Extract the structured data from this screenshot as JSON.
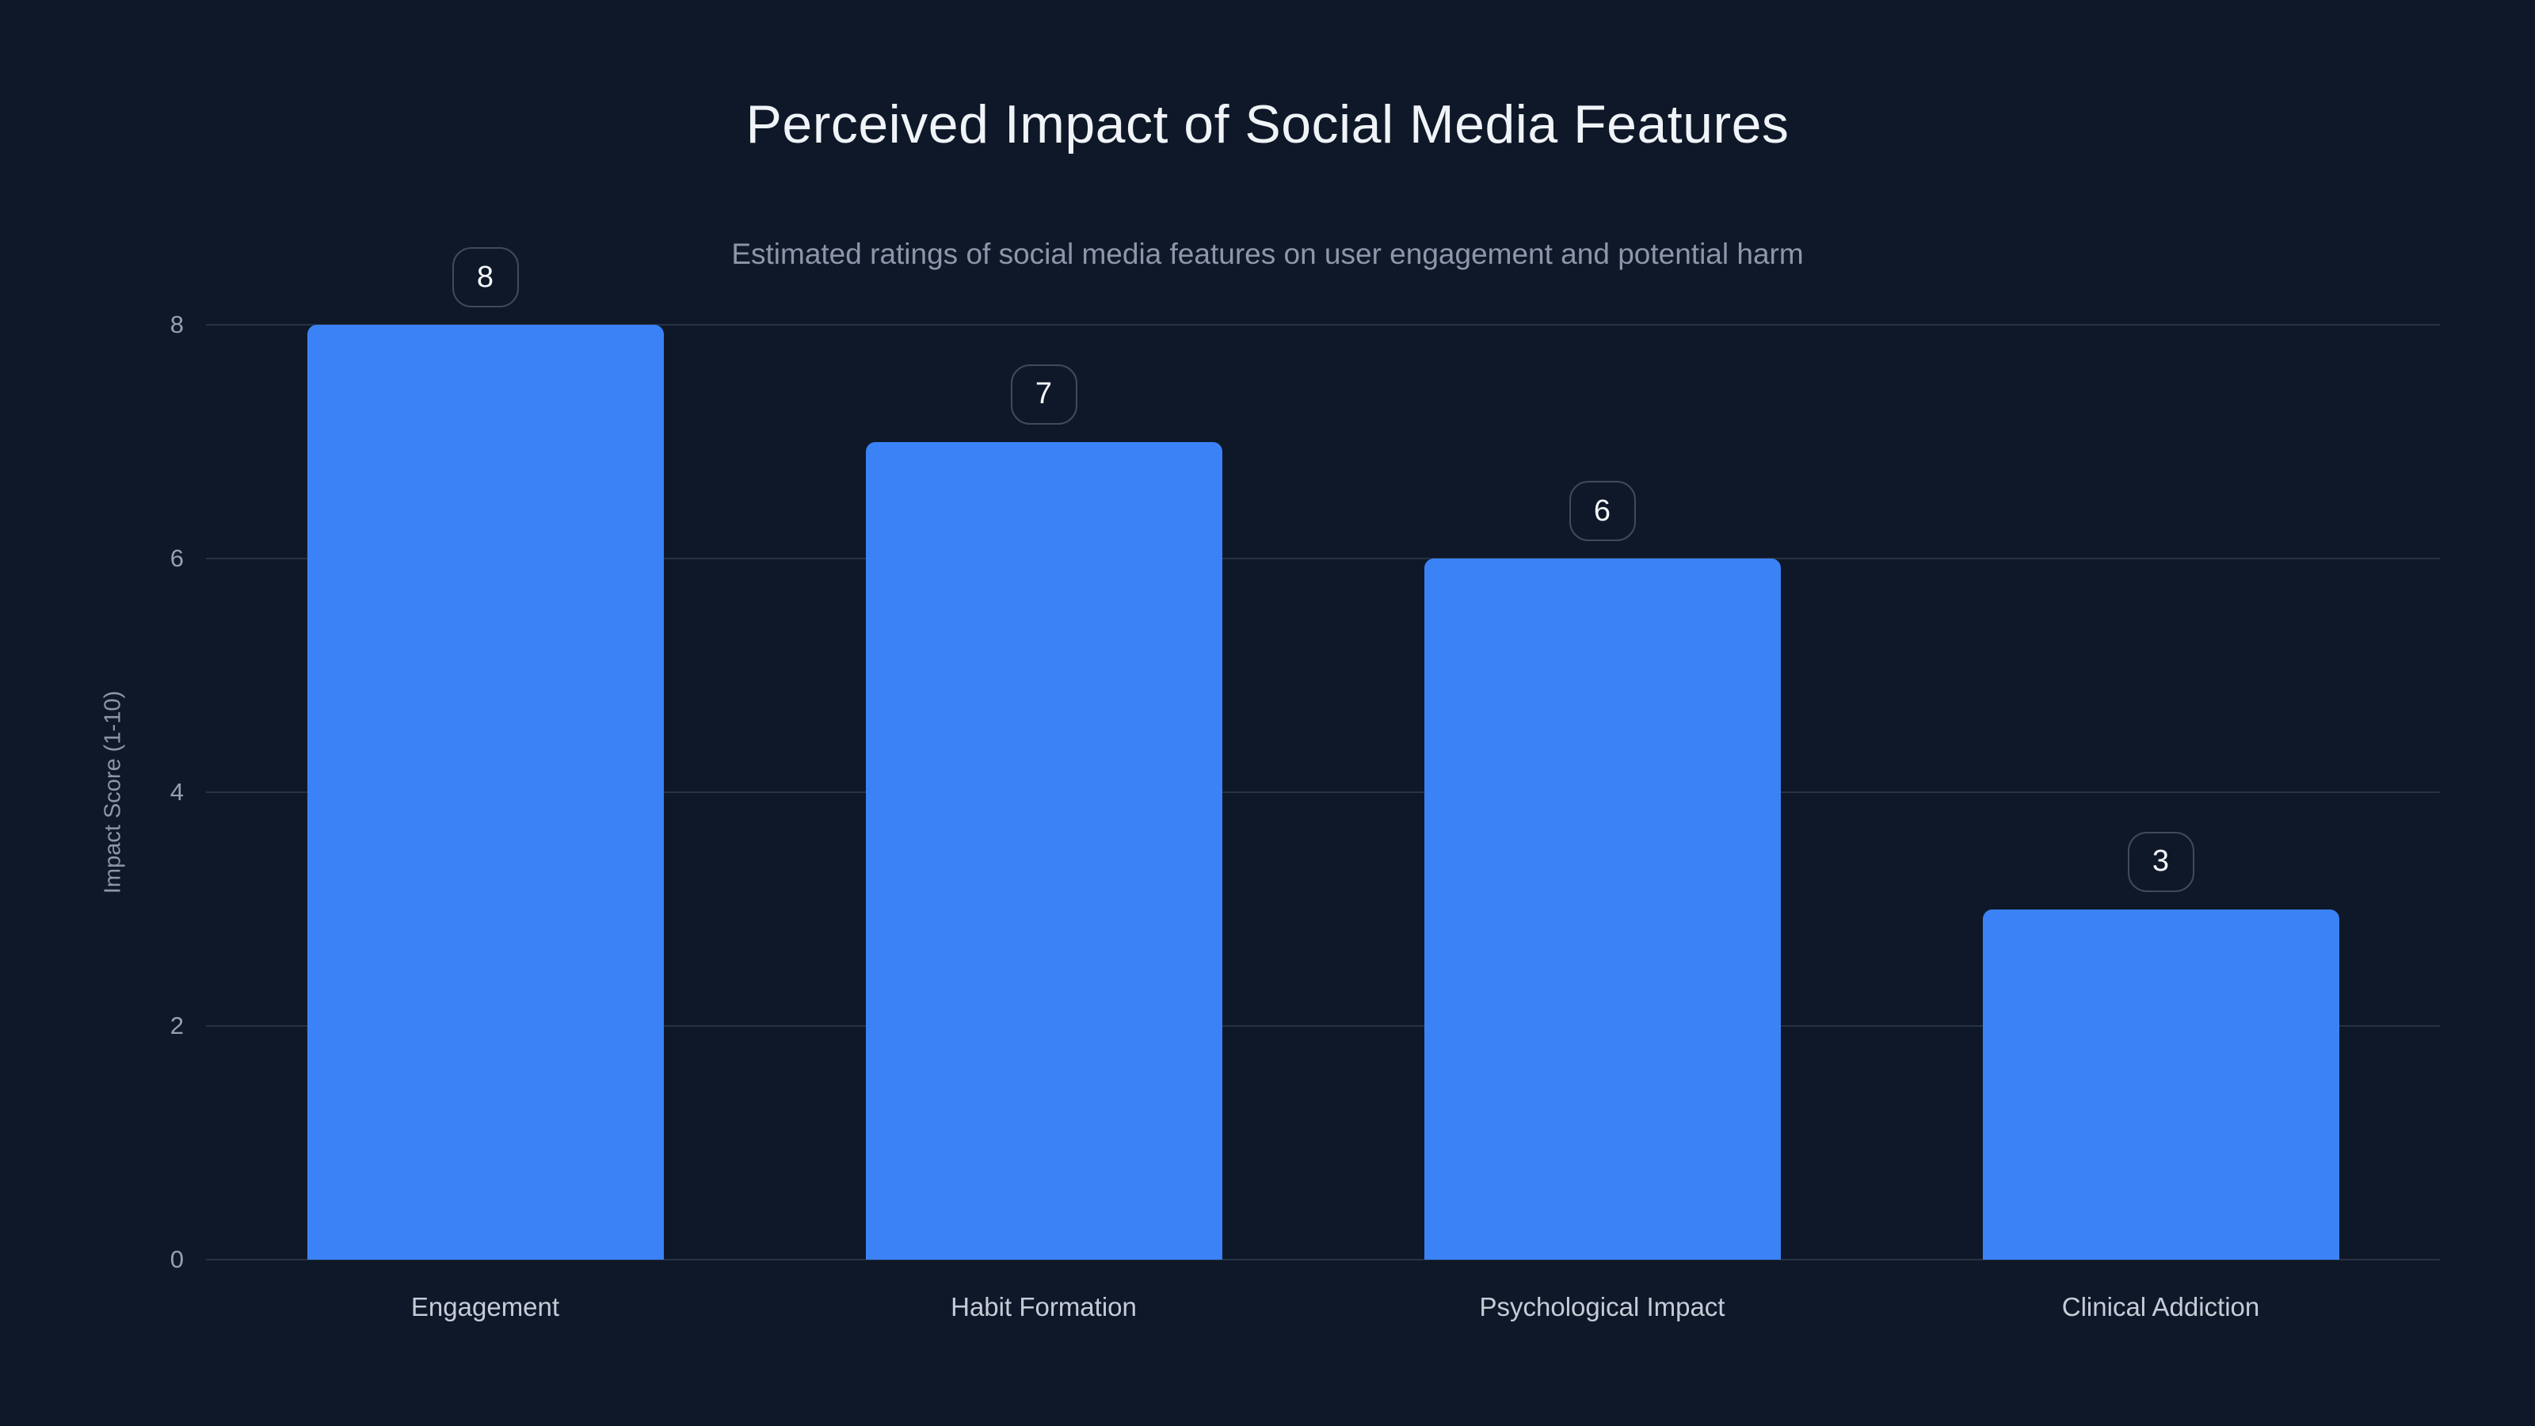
{
  "chart_data": {
    "type": "bar",
    "title": "Perceived Impact of Social Media Features",
    "subtitle": "Estimated ratings of social media features on user engagement and potential harm",
    "categories": [
      "Engagement",
      "Habit Formation",
      "Psychological Impact",
      "Clinical Addiction"
    ],
    "values": [
      8,
      7,
      6,
      3
    ],
    "value_labels": [
      "8",
      "7",
      "6",
      "3"
    ],
    "xlabel": "",
    "ylabel": "Impact Score (1-10)",
    "ylim": [
      0,
      8
    ],
    "yticks": [
      0,
      2,
      4,
      6,
      8
    ],
    "grid": true,
    "legend": false
  },
  "colors": {
    "background": "#0f1828",
    "bar": "#3b82f6",
    "grid": "#263245",
    "title": "#f0f4f8",
    "subtitle": "#8b97aa",
    "tick_label": "#94a1b3",
    "x_label": "#c4ccd8",
    "y_axis_title": "#8b97aa",
    "badge_border": "#3f4a5b",
    "badge_text": "#f5f8fb"
  }
}
